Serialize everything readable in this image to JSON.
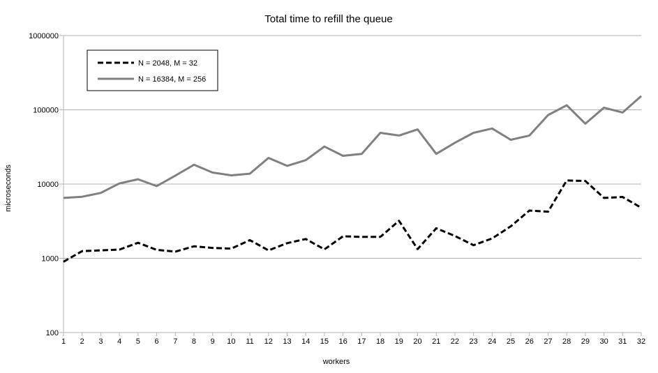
{
  "chart_data": {
    "type": "line",
    "title": "Total time to refill the queue",
    "xlabel": "workers",
    "ylabel": "microseconds",
    "yscale": "log",
    "ylim": [
      100,
      1000000
    ],
    "xlim": [
      1,
      32
    ],
    "y_ticks": [
      "100",
      "1000",
      "10000",
      "100000",
      "1000000"
    ],
    "x": [
      1,
      2,
      3,
      4,
      5,
      6,
      7,
      8,
      9,
      10,
      11,
      12,
      13,
      14,
      15,
      16,
      17,
      18,
      19,
      20,
      21,
      22,
      23,
      24,
      25,
      26,
      27,
      28,
      29,
      30,
      31,
      32
    ],
    "grid": "horizontal",
    "legend_position": "top-left",
    "series": [
      {
        "name": "N = 2048, M = 32",
        "color": "#000000",
        "dash": "dashed",
        "values": [
          900,
          1250,
          1280,
          1310,
          1620,
          1300,
          1230,
          1450,
          1380,
          1350,
          1760,
          1280,
          1600,
          1820,
          1320,
          1980,
          1940,
          1940,
          3200,
          1330,
          2540,
          2000,
          1500,
          1850,
          2700,
          4400,
          4250,
          11200,
          11000,
          6500,
          6700,
          4800
        ]
      },
      {
        "name": "N = 16384, M = 256",
        "color": "#808080",
        "dash": "solid",
        "values": [
          6500,
          6750,
          7600,
          10200,
          11600,
          9400,
          13000,
          18200,
          14300,
          13100,
          13800,
          22500,
          17600,
          21000,
          32000,
          24000,
          25500,
          49000,
          45000,
          54500,
          25500,
          36000,
          49000,
          56000,
          39500,
          45000,
          85000,
          115000,
          65000,
          107000,
          92000,
          153000
        ]
      }
    ]
  }
}
